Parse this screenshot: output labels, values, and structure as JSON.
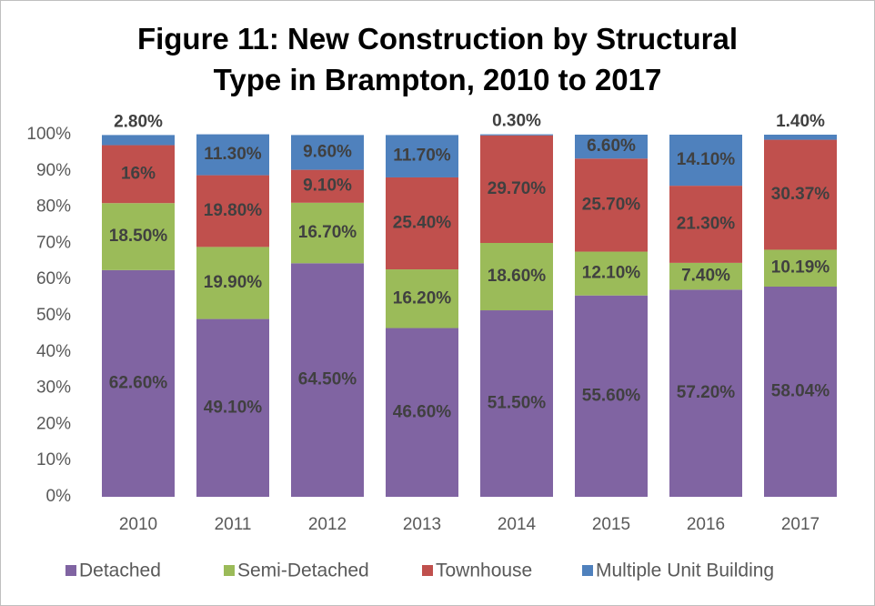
{
  "chart_data": {
    "type": "stacked_bar",
    "title": "Figure 11: New Construction by Structural Type in Brampton, 2010 to 2017",
    "categories": [
      "2010",
      "2011",
      "2012",
      "2013",
      "2014",
      "2015",
      "2016",
      "2017"
    ],
    "series": [
      {
        "name": "Detached",
        "color": "#8064a2",
        "values": [
          62.6,
          49.1,
          64.5,
          46.6,
          51.5,
          55.6,
          57.2,
          58.04
        ],
        "value_labels": [
          "62.60%",
          "49.10%",
          "64.50%",
          "46.60%",
          "51.50%",
          "55.60%",
          "57.20%",
          "58.04%"
        ]
      },
      {
        "name": "Semi-Detached",
        "color": "#9bbb59",
        "values": [
          18.5,
          19.9,
          16.7,
          16.2,
          18.6,
          12.1,
          7.4,
          10.19
        ],
        "value_labels": [
          "18.50%",
          "19.90%",
          "16.70%",
          "16.20%",
          "18.60%",
          "12.10%",
          "7.40%",
          "10.19%"
        ]
      },
      {
        "name": "Townhouse",
        "color": "#c0504d",
        "values": [
          16,
          19.8,
          9.1,
          25.4,
          29.7,
          25.7,
          21.3,
          30.37
        ],
        "value_labels": [
          "16%",
          "19.80%",
          "9.10%",
          "25.40%",
          "29.70%",
          "25.70%",
          "21.30%",
          "30.37%"
        ]
      },
      {
        "name": "Multiple Unit Building",
        "color": "#4f81bd",
        "values": [
          2.8,
          11.3,
          9.6,
          11.7,
          0.3,
          6.6,
          14.1,
          1.4
        ],
        "value_labels": [
          "2.80%",
          "11.30%",
          "9.60%",
          "11.70%",
          "0.30%",
          "6.60%",
          "14.10%",
          "1.40%"
        ]
      }
    ],
    "ylim": [
      0,
      100
    ],
    "yticks": [
      {
        "value": 0,
        "label": "0%"
      },
      {
        "value": 10,
        "label": "10%"
      },
      {
        "value": 20,
        "label": "20%"
      },
      {
        "value": 30,
        "label": "30%"
      },
      {
        "value": 40,
        "label": "40%"
      },
      {
        "value": 50,
        "label": "50%"
      },
      {
        "value": 60,
        "label": "60%"
      },
      {
        "value": 70,
        "label": "70%"
      },
      {
        "value": 80,
        "label": "80%"
      },
      {
        "value": 90,
        "label": "90%"
      },
      {
        "value": 100,
        "label": "100%"
      }
    ],
    "grid": false,
    "legend": "bottom"
  }
}
